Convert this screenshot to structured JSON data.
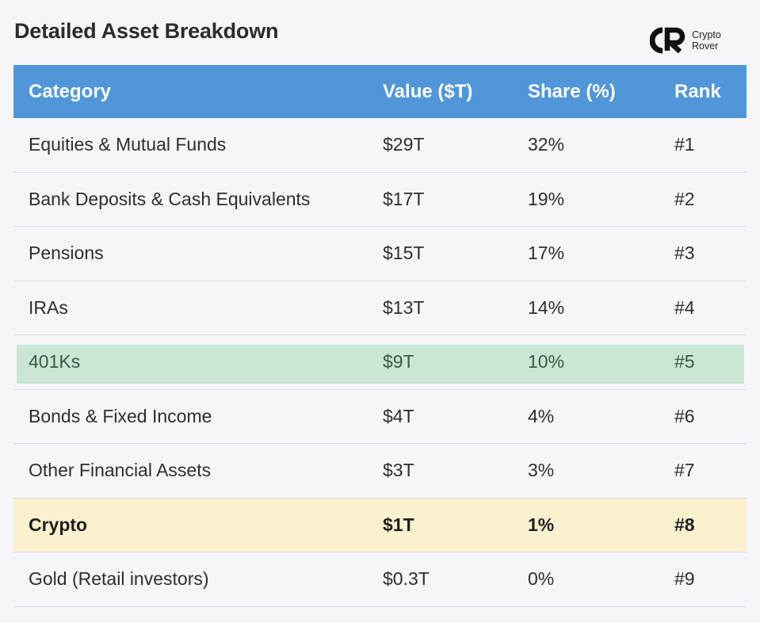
{
  "title": "Detailed Asset Breakdown",
  "brand": {
    "logo_icon": "crypto-rover-logo",
    "line1": "Crypto",
    "line2": "Rover"
  },
  "columns": [
    "Category",
    "Value ($T)",
    "Share (%)",
    "Rank"
  ],
  "rows": [
    {
      "category": "Equities & Mutual Funds",
      "value": "$29T",
      "share": "32%",
      "rank": "#1",
      "highlight": "none"
    },
    {
      "category": "Bank Deposits & Cash Equivalents",
      "value": "$17T",
      "share": "19%",
      "rank": "#2",
      "highlight": "none"
    },
    {
      "category": "Pensions",
      "value": "$15T",
      "share": "17%",
      "rank": "#3",
      "highlight": "none"
    },
    {
      "category": "IRAs",
      "value": "$13T",
      "share": "14%",
      "rank": "#4",
      "highlight": "none"
    },
    {
      "category": "401Ks",
      "value": "$9T",
      "share": "10%",
      "rank": "#5",
      "highlight": "green"
    },
    {
      "category": "Bonds & Fixed Income",
      "value": "$4T",
      "share": "4%",
      "rank": "#6",
      "highlight": "none"
    },
    {
      "category": "Other Financial Assets",
      "value": "$3T",
      "share": "3%",
      "rank": "#7",
      "highlight": "none"
    },
    {
      "category": "Crypto",
      "value": "$1T",
      "share": "1%",
      "rank": "#8",
      "highlight": "yellow"
    },
    {
      "category": "Gold (Retail investors)",
      "value": "$0.3T",
      "share": "0%",
      "rank": "#9",
      "highlight": "none"
    }
  ],
  "colors": {
    "header_bg": "#5096d8",
    "green_highlight": "#c9e7d4",
    "yellow_highlight": "#fcf1cf",
    "page_bg": "#f6f6fa"
  }
}
